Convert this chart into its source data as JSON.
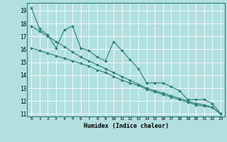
{
  "xlabel": "Humidex (Indice chaleur)",
  "background_color": "#b2e0e0",
  "line_color": "#2d7d78",
  "grid_color": "#ffffff",
  "xlim": [
    -0.5,
    23.5
  ],
  "ylim": [
    10.8,
    19.6
  ],
  "yticks": [
    11,
    12,
    13,
    14,
    15,
    16,
    17,
    18,
    19
  ],
  "xticks": [
    0,
    1,
    2,
    3,
    4,
    5,
    6,
    7,
    8,
    9,
    10,
    11,
    12,
    13,
    14,
    15,
    16,
    17,
    18,
    19,
    20,
    21,
    22,
    23
  ],
  "xtick_labels": [
    "0",
    "1",
    "2",
    "3",
    "4",
    "5",
    "6",
    "7",
    "8",
    "9",
    "10",
    "11",
    "12",
    "13",
    "14",
    "15",
    "16",
    "17",
    "18",
    "19",
    "20",
    "21",
    "22",
    "23"
  ],
  "line1_x": [
    0,
    1,
    2,
    3,
    4,
    5,
    6,
    7,
    8,
    9,
    10,
    11,
    12,
    13,
    14,
    15,
    16,
    17,
    18,
    19,
    20,
    21,
    22,
    23
  ],
  "line1_y": [
    19.2,
    17.6,
    17.1,
    16.1,
    17.5,
    17.8,
    16.1,
    15.9,
    15.4,
    15.1,
    16.6,
    15.9,
    15.2,
    14.5,
    13.4,
    13.4,
    13.4,
    13.1,
    12.8,
    12.1,
    12.1,
    12.1,
    11.8,
    11.0
  ],
  "line2_x": [
    0,
    1,
    2,
    3,
    4,
    5,
    6,
    7,
    8,
    9,
    10,
    11,
    12,
    13,
    14,
    15,
    16,
    17,
    18,
    19,
    20,
    21,
    22,
    23
  ],
  "line2_y": [
    17.8,
    17.4,
    17.0,
    16.6,
    16.2,
    15.8,
    15.4,
    15.1,
    14.8,
    14.5,
    14.2,
    13.9,
    13.6,
    13.3,
    13.0,
    12.8,
    12.6,
    12.4,
    12.2,
    12.0,
    11.8,
    11.7,
    11.5,
    11.0
  ],
  "line3_x": [
    0,
    1,
    2,
    3,
    4,
    5,
    6,
    7,
    8,
    9,
    10,
    11,
    12,
    13,
    14,
    15,
    16,
    17,
    18,
    19,
    20,
    21,
    22,
    23
  ],
  "line3_y": [
    16.1,
    15.9,
    15.7,
    15.5,
    15.3,
    15.1,
    14.9,
    14.7,
    14.4,
    14.2,
    13.9,
    13.6,
    13.4,
    13.2,
    12.9,
    12.7,
    12.5,
    12.3,
    12.1,
    11.9,
    11.7,
    11.6,
    11.5,
    11.0
  ]
}
